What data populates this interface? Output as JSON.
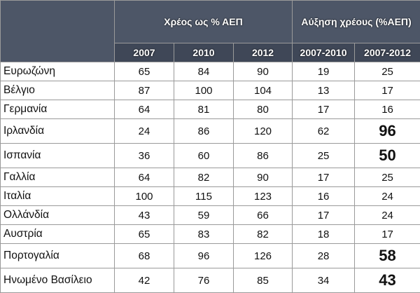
{
  "table": {
    "header": {
      "group_1": "Χρέος ως % ΑΕΠ",
      "group_2": "Αύξηση χρέους (%ΑΕΠ)",
      "columns": [
        "2007",
        "2010",
        "2012",
        "2007-2010",
        "2007-2012"
      ]
    },
    "rows": [
      [
        "Ευρωζώνη",
        65,
        84,
        90,
        19,
        25
      ],
      [
        "Βέλγιο",
        87,
        100,
        104,
        13,
        17
      ],
      [
        "Γερμανία",
        64,
        81,
        80,
        17,
        16
      ],
      [
        "Ιρλανδία",
        24,
        86,
        120,
        62,
        96
      ],
      [
        "Ισπανία",
        36,
        60,
        86,
        25,
        50
      ],
      [
        "Γαλλία",
        64,
        82,
        90,
        17,
        25
      ],
      [
        "Ιταλία",
        100,
        115,
        123,
        16,
        24
      ],
      [
        "Ολλάνδία",
        43,
        59,
        66,
        17,
        24
      ],
      [
        "Αυστρία",
        65,
        83,
        82,
        18,
        17
      ],
      [
        "Πορτογαλία",
        68,
        96,
        126,
        28,
        58
      ],
      [
        "Ηνωμένο Βασίλειο",
        42,
        76,
        85,
        34,
        43
      ]
    ]
  }
}
